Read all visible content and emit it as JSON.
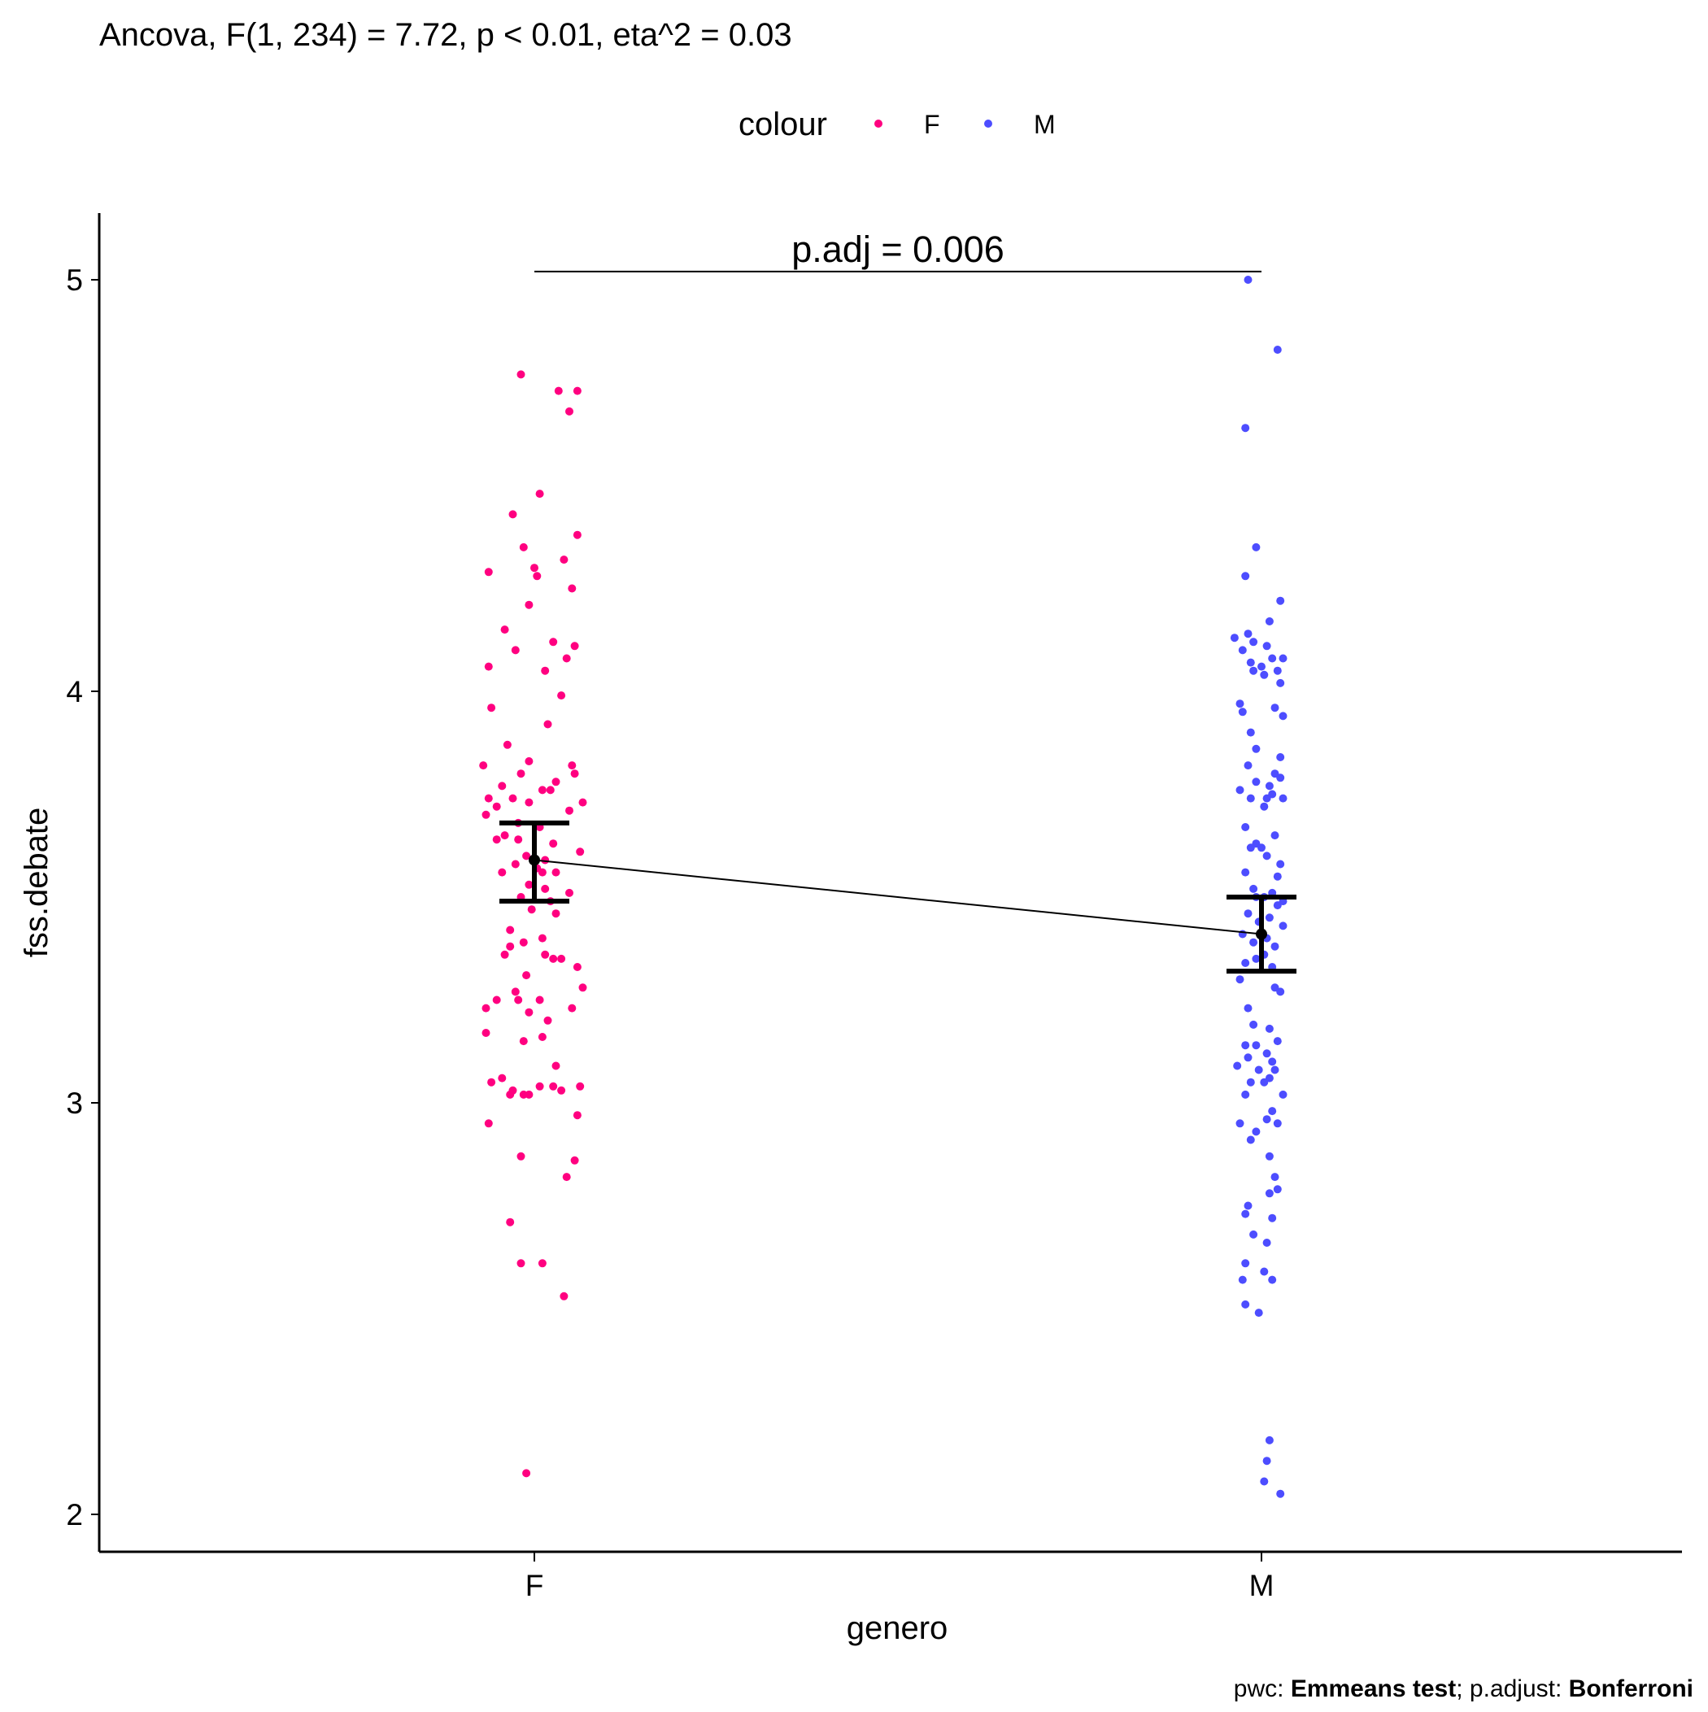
{
  "chart_data": {
    "type": "scatter",
    "subtitle": "Ancova, F(1, 234) = 7.72, p < 0.01, eta^2 = 0.03",
    "xlabel": "genero",
    "ylabel": "fss.debate",
    "categories": [
      "F",
      "M"
    ],
    "ylim": [
      1.9,
      5.15
    ],
    "yticks": [
      2,
      3,
      4,
      5
    ],
    "ytick_labels": [
      "2",
      "3",
      "4",
      "5"
    ],
    "grid": false,
    "legend": {
      "title": "colour",
      "position": "top",
      "entries": [
        {
          "label": "F",
          "color": "#FF0080"
        },
        {
          "label": "M",
          "color": "#4D4DFF"
        }
      ]
    },
    "annotation": {
      "text": "p.adj = 0.006",
      "y": 5.02,
      "from": "F",
      "to": "M"
    },
    "caption": {
      "prefix_1": "pwc: ",
      "bold_1": "Emmeans test",
      "prefix_2": "; p.adjust: ",
      "bold_2": "Bonferroni"
    },
    "series": [
      {
        "name": "F",
        "color": "#FF0080",
        "mean": 3.59,
        "ci": [
          3.49,
          3.68
        ],
        "points": [
          [
            -0.05,
            4.77
          ],
          [
            0.09,
            4.73
          ],
          [
            0.16,
            4.73
          ],
          [
            0.13,
            4.68
          ],
          [
            0.02,
            4.48
          ],
          [
            -0.08,
            4.43
          ],
          [
            0.16,
            4.38
          ],
          [
            -0.04,
            4.35
          ],
          [
            0.11,
            4.32
          ],
          [
            0,
            4.3
          ],
          [
            -0.17,
            4.29
          ],
          [
            0.01,
            4.28
          ],
          [
            0.14,
            4.25
          ],
          [
            -0.02,
            4.21
          ],
          [
            -0.11,
            4.15
          ],
          [
            0.07,
            4.12
          ],
          [
            0.15,
            4.11
          ],
          [
            -0.07,
            4.1
          ],
          [
            0.12,
            4.08
          ],
          [
            -0.17,
            4.06
          ],
          [
            0.04,
            4.05
          ],
          [
            0.1,
            3.99
          ],
          [
            -0.16,
            3.96
          ],
          [
            0.05,
            3.92
          ],
          [
            -0.1,
            3.87
          ],
          [
            -0.02,
            3.83
          ],
          [
            0.14,
            3.82
          ],
          [
            -0.19,
            3.82
          ],
          [
            -0.05,
            3.8
          ],
          [
            0.15,
            3.8
          ],
          [
            0.08,
            3.78
          ],
          [
            -0.12,
            3.77
          ],
          [
            0.03,
            3.76
          ],
          [
            0.06,
            3.76
          ],
          [
            -0.17,
            3.74
          ],
          [
            -0.08,
            3.74
          ],
          [
            -0.02,
            3.73
          ],
          [
            0.18,
            3.73
          ],
          [
            -0.14,
            3.72
          ],
          [
            0.13,
            3.71
          ],
          [
            -0.18,
            3.7
          ],
          [
            -0.06,
            3.68
          ],
          [
            0.02,
            3.67
          ],
          [
            -0.11,
            3.65
          ],
          [
            -0.06,
            3.64
          ],
          [
            -0.14,
            3.64
          ],
          [
            0.07,
            3.63
          ],
          [
            0.17,
            3.61
          ],
          [
            -0.03,
            3.6
          ],
          [
            0.04,
            3.59
          ],
          [
            -0.07,
            3.58
          ],
          [
            0.01,
            3.57
          ],
          [
            0.03,
            3.56
          ],
          [
            0.08,
            3.56
          ],
          [
            -0.12,
            3.56
          ],
          [
            -0.02,
            3.53
          ],
          [
            0.04,
            3.52
          ],
          [
            0.13,
            3.51
          ],
          [
            -0.05,
            3.5
          ],
          [
            0.06,
            3.49
          ],
          [
            -0.01,
            3.47
          ],
          [
            0.08,
            3.46
          ],
          [
            -0.09,
            3.42
          ],
          [
            0.03,
            3.4
          ],
          [
            -0.04,
            3.39
          ],
          [
            -0.09,
            3.38
          ],
          [
            -0.11,
            3.36
          ],
          [
            0.04,
            3.36
          ],
          [
            0.1,
            3.35
          ],
          [
            0.07,
            3.35
          ],
          [
            0.16,
            3.33
          ],
          [
            -0.03,
            3.31
          ],
          [
            0.18,
            3.28
          ],
          [
            -0.07,
            3.27
          ],
          [
            -0.14,
            3.25
          ],
          [
            0.02,
            3.25
          ],
          [
            -0.06,
            3.25
          ],
          [
            -0.18,
            3.23
          ],
          [
            0.14,
            3.23
          ],
          [
            -0.02,
            3.22
          ],
          [
            0.05,
            3.2
          ],
          [
            -0.18,
            3.17
          ],
          [
            0.03,
            3.16
          ],
          [
            -0.04,
            3.15
          ],
          [
            0.08,
            3.09
          ],
          [
            -0.12,
            3.06
          ],
          [
            -0.08,
            3.03
          ],
          [
            -0.16,
            3.05
          ],
          [
            0.02,
            3.04
          ],
          [
            0.07,
            3.04
          ],
          [
            0.1,
            3.03
          ],
          [
            0.17,
            3.04
          ],
          [
            -0.02,
            3.02
          ],
          [
            -0.09,
            3.02
          ],
          [
            -0.04,
            3.02
          ],
          [
            0.16,
            2.97
          ],
          [
            -0.17,
            2.95
          ],
          [
            -0.05,
            2.87
          ],
          [
            0.15,
            2.86
          ],
          [
            0.12,
            2.82
          ],
          [
            -0.09,
            2.71
          ],
          [
            -0.05,
            2.61
          ],
          [
            0.03,
            2.61
          ],
          [
            0.11,
            2.53
          ],
          [
            -0.03,
            2.1
          ]
        ]
      },
      {
        "name": "M",
        "color": "#4D4DFF",
        "mean": 3.41,
        "ci": [
          3.32,
          3.5
        ],
        "points": [
          [
            -0.05,
            5
          ],
          [
            0.06,
            4.83
          ],
          [
            -0.06,
            4.64
          ],
          [
            -0.02,
            4.35
          ],
          [
            -0.06,
            4.28
          ],
          [
            0.07,
            4.22
          ],
          [
            0.03,
            4.17
          ],
          [
            -0.05,
            4.14
          ],
          [
            -0.1,
            4.13
          ],
          [
            -0.03,
            4.12
          ],
          [
            0.02,
            4.11
          ],
          [
            -0.07,
            4.1
          ],
          [
            0.08,
            4.08
          ],
          [
            0.04,
            4.08
          ],
          [
            -0.04,
            4.07
          ],
          [
            0,
            4.06
          ],
          [
            0.01,
            4.04
          ],
          [
            0.06,
            4.05
          ],
          [
            -0.03,
            4.05
          ],
          [
            0.07,
            4.02
          ],
          [
            -0.08,
            3.97
          ],
          [
            0.05,
            3.96
          ],
          [
            -0.07,
            3.95
          ],
          [
            0.08,
            3.94
          ],
          [
            -0.04,
            3.9
          ],
          [
            -0.02,
            3.86
          ],
          [
            0.07,
            3.84
          ],
          [
            -0.05,
            3.82
          ],
          [
            0.05,
            3.8
          ],
          [
            0.07,
            3.79
          ],
          [
            -0.02,
            3.78
          ],
          [
            0.03,
            3.77
          ],
          [
            0.04,
            3.75
          ],
          [
            0.08,
            3.74
          ],
          [
            -0.08,
            3.76
          ],
          [
            -0.04,
            3.74
          ],
          [
            0.02,
            3.74
          ],
          [
            0.01,
            3.72
          ],
          [
            -0.06,
            3.67
          ],
          [
            0.05,
            3.65
          ],
          [
            -0.02,
            3.63
          ],
          [
            0,
            3.62
          ],
          [
            -0.04,
            3.62
          ],
          [
            0.02,
            3.6
          ],
          [
            0.07,
            3.58
          ],
          [
            -0.06,
            3.56
          ],
          [
            0.06,
            3.55
          ],
          [
            -0.03,
            3.52
          ],
          [
            0.04,
            3.51
          ],
          [
            0.01,
            3.5
          ],
          [
            -0.02,
            3.5
          ],
          [
            0.08,
            3.49
          ],
          [
            0.06,
            3.48
          ],
          [
            -0.05,
            3.46
          ],
          [
            0.03,
            3.45
          ],
          [
            -0.01,
            3.44
          ],
          [
            0.08,
            3.43
          ],
          [
            -0.07,
            3.41
          ],
          [
            0.02,
            3.4
          ],
          [
            -0.03,
            3.39
          ],
          [
            0.05,
            3.38
          ],
          [
            0.01,
            3.36
          ],
          [
            -0.02,
            3.35
          ],
          [
            -0.06,
            3.34
          ],
          [
            0.04,
            3.33
          ],
          [
            -0.08,
            3.3
          ],
          [
            0.05,
            3.28
          ],
          [
            0.07,
            3.27
          ],
          [
            -0.05,
            3.23
          ],
          [
            -0.03,
            3.19
          ],
          [
            0.03,
            3.18
          ],
          [
            0.06,
            3.15
          ],
          [
            -0.06,
            3.14
          ],
          [
            -0.02,
            3.14
          ],
          [
            0.02,
            3.12
          ],
          [
            -0.05,
            3.11
          ],
          [
            0.04,
            3.1
          ],
          [
            -0.09,
            3.09
          ],
          [
            0.05,
            3.08
          ],
          [
            -0.01,
            3.08
          ],
          [
            0.03,
            3.06
          ],
          [
            -0.04,
            3.05
          ],
          [
            0.01,
            3.05
          ],
          [
            0.08,
            3.02
          ],
          [
            -0.06,
            3.02
          ],
          [
            0.04,
            2.98
          ],
          [
            0.02,
            2.96
          ],
          [
            0.06,
            2.95
          ],
          [
            -0.08,
            2.95
          ],
          [
            -0.02,
            2.93
          ],
          [
            -0.04,
            2.91
          ],
          [
            0.03,
            2.87
          ],
          [
            0.05,
            2.82
          ],
          [
            0.06,
            2.79
          ],
          [
            0.03,
            2.78
          ],
          [
            -0.05,
            2.75
          ],
          [
            0.04,
            2.72
          ],
          [
            -0.06,
            2.73
          ],
          [
            -0.03,
            2.68
          ],
          [
            0.02,
            2.66
          ],
          [
            -0.06,
            2.61
          ],
          [
            0.01,
            2.59
          ],
          [
            -0.07,
            2.57
          ],
          [
            0.04,
            2.57
          ],
          [
            -0.06,
            2.51
          ],
          [
            -0.01,
            2.49
          ],
          [
            0.03,
            2.18
          ],
          [
            0.02,
            2.13
          ],
          [
            0.01,
            2.08
          ],
          [
            0.07,
            2.05
          ]
        ]
      }
    ]
  }
}
